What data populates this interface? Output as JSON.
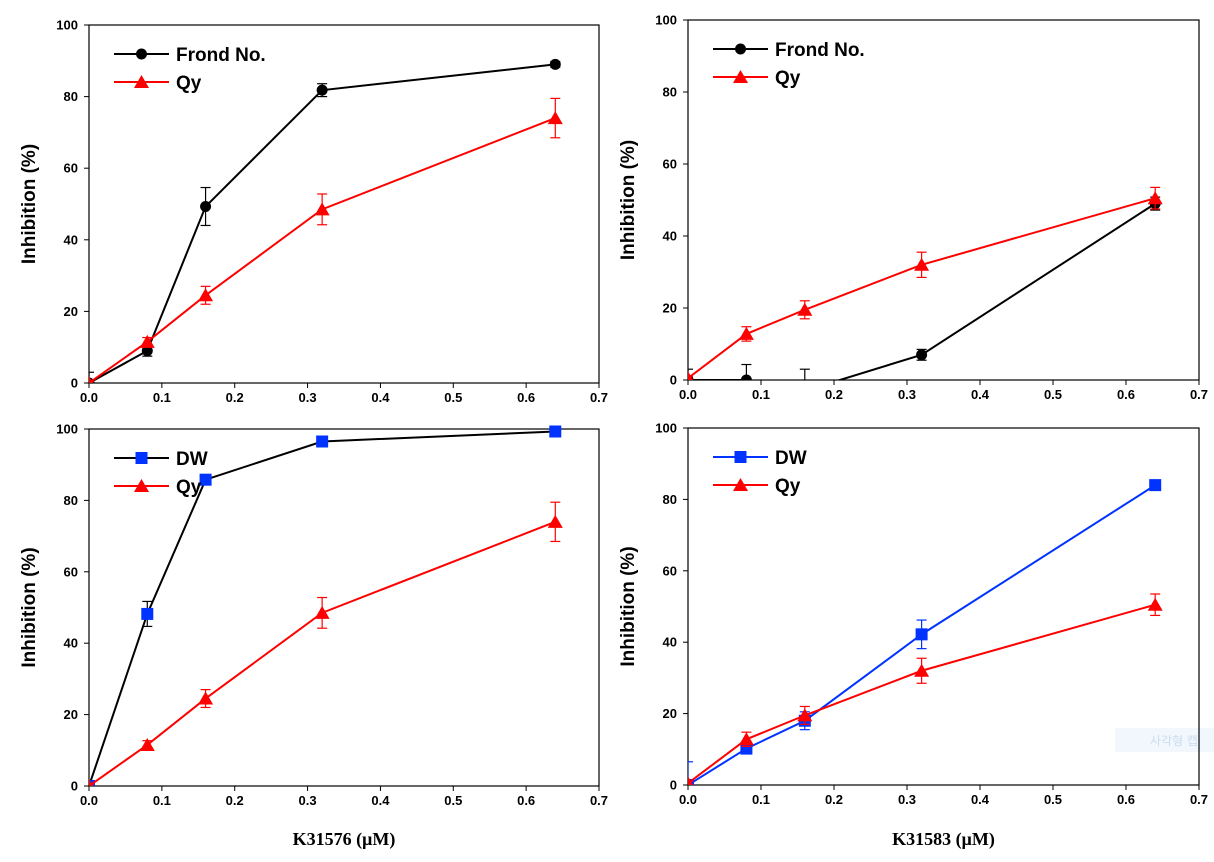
{
  "watermark": "사각형 캡",
  "chart_data": [
    {
      "type": "line",
      "xlabel": "",
      "ylabel": "Inhibition (%)",
      "xlim": [
        0,
        0.7
      ],
      "ylim": [
        0,
        100
      ],
      "xticks": [
        "0.0",
        "0.1",
        "0.2",
        "0.3",
        "0.4",
        "0.5",
        "0.6",
        "0.7"
      ],
      "yticks": [
        "0",
        "20",
        "40",
        "60",
        "80",
        "100"
      ],
      "legend_position": "top-left",
      "grid": false,
      "series": [
        {
          "name": "Frond No.",
          "color": "#000000",
          "marker": "circle",
          "x": [
            0,
            0.08,
            0.16,
            0.32,
            0.64
          ],
          "y": [
            0,
            9,
            49.3,
            81.8,
            89
          ],
          "err": [
            3,
            1.5,
            5.3,
            1.8,
            0.8
          ]
        },
        {
          "name": "Qy",
          "color": "#ff0000",
          "marker": "triangle",
          "x": [
            0,
            0.08,
            0.16,
            0.32,
            0.64
          ],
          "y": [
            0,
            11.5,
            24.5,
            48.5,
            74
          ],
          "err": [
            0.5,
            1.2,
            2.5,
            4.3,
            5.5
          ]
        }
      ]
    },
    {
      "type": "line",
      "xlabel": "",
      "ylabel": "Inhibition (%)",
      "xlim": [
        0,
        0.7
      ],
      "ylim": [
        0,
        100
      ],
      "xticks": [
        "0.0",
        "0.1",
        "0.2",
        "0.3",
        "0.4",
        "0.5",
        "0.6",
        "0.7"
      ],
      "yticks": [
        "0",
        "20",
        "40",
        "60",
        "80",
        "100"
      ],
      "legend_position": "top-left",
      "grid": false,
      "series": [
        {
          "name": "Frond No.",
          "color": "#000000",
          "marker": "circle",
          "x": [
            0,
            0.08,
            0.16,
            0.32,
            0.64
          ],
          "y": [
            0,
            0,
            -3,
            7,
            49
          ],
          "err": [
            3,
            4.3,
            6,
            1.5,
            1.8
          ]
        },
        {
          "name": "Qy",
          "color": "#ff0000",
          "marker": "triangle",
          "x": [
            0,
            0.08,
            0.16,
            0.32,
            0.64
          ],
          "y": [
            0.5,
            12.8,
            19.5,
            32,
            50.5
          ],
          "err": [
            0.5,
            2,
            2.5,
            3.5,
            3
          ]
        }
      ]
    },
    {
      "type": "line",
      "xlabel": "K31576 (µM)",
      "ylabel": "Inhibition (%)",
      "xlim": [
        0,
        0.7
      ],
      "ylim": [
        0,
        100
      ],
      "xticks": [
        "0.0",
        "0.1",
        "0.2",
        "0.3",
        "0.4",
        "0.5",
        "0.6",
        "0.7"
      ],
      "yticks": [
        "0",
        "20",
        "40",
        "60",
        "80",
        "100"
      ],
      "legend_position": "top-left",
      "grid": false,
      "series": [
        {
          "name": "DW",
          "color": "#000000",
          "markerColor": "#0033ff",
          "marker": "square",
          "x": [
            0,
            0.08,
            0.16,
            0.32,
            0.64
          ],
          "y": [
            0,
            48.2,
            85.8,
            96.5,
            99.3
          ],
          "err": [
            0.5,
            3.5,
            1.2,
            0.8,
            0.5
          ]
        },
        {
          "name": "Qy",
          "color": "#ff0000",
          "marker": "triangle",
          "x": [
            0,
            0.08,
            0.16,
            0.32,
            0.64
          ],
          "y": [
            0,
            11.5,
            24.5,
            48.5,
            74
          ],
          "err": [
            0.5,
            1.2,
            2.5,
            4.3,
            5.5
          ]
        }
      ]
    },
    {
      "type": "line",
      "xlabel": "K31583 (µM)",
      "ylabel": "Inhibition (%)",
      "xlim": [
        0,
        0.7
      ],
      "ylim": [
        0,
        100
      ],
      "xticks": [
        "0.0",
        "0.1",
        "0.2",
        "0.3",
        "0.4",
        "0.5",
        "0.6",
        "0.7"
      ],
      "yticks": [
        "0",
        "20",
        "40",
        "60",
        "80",
        "100"
      ],
      "legend_position": "top-left",
      "grid": false,
      "series": [
        {
          "name": "DW",
          "color": "#0033ff",
          "marker": "square",
          "x": [
            0,
            0.08,
            0.16,
            0.32,
            0.64
          ],
          "y": [
            0,
            10.2,
            18,
            42.2,
            84
          ],
          "err": [
            6.5,
            1.5,
            2.5,
            4,
            1
          ]
        },
        {
          "name": "Qy",
          "color": "#ff0000",
          "marker": "triangle",
          "x": [
            0,
            0.08,
            0.16,
            0.32,
            0.64
          ],
          "y": [
            0.5,
            12.8,
            19.5,
            32,
            50.5
          ],
          "err": [
            0.5,
            2,
            2.5,
            3.5,
            3
          ]
        }
      ]
    }
  ]
}
